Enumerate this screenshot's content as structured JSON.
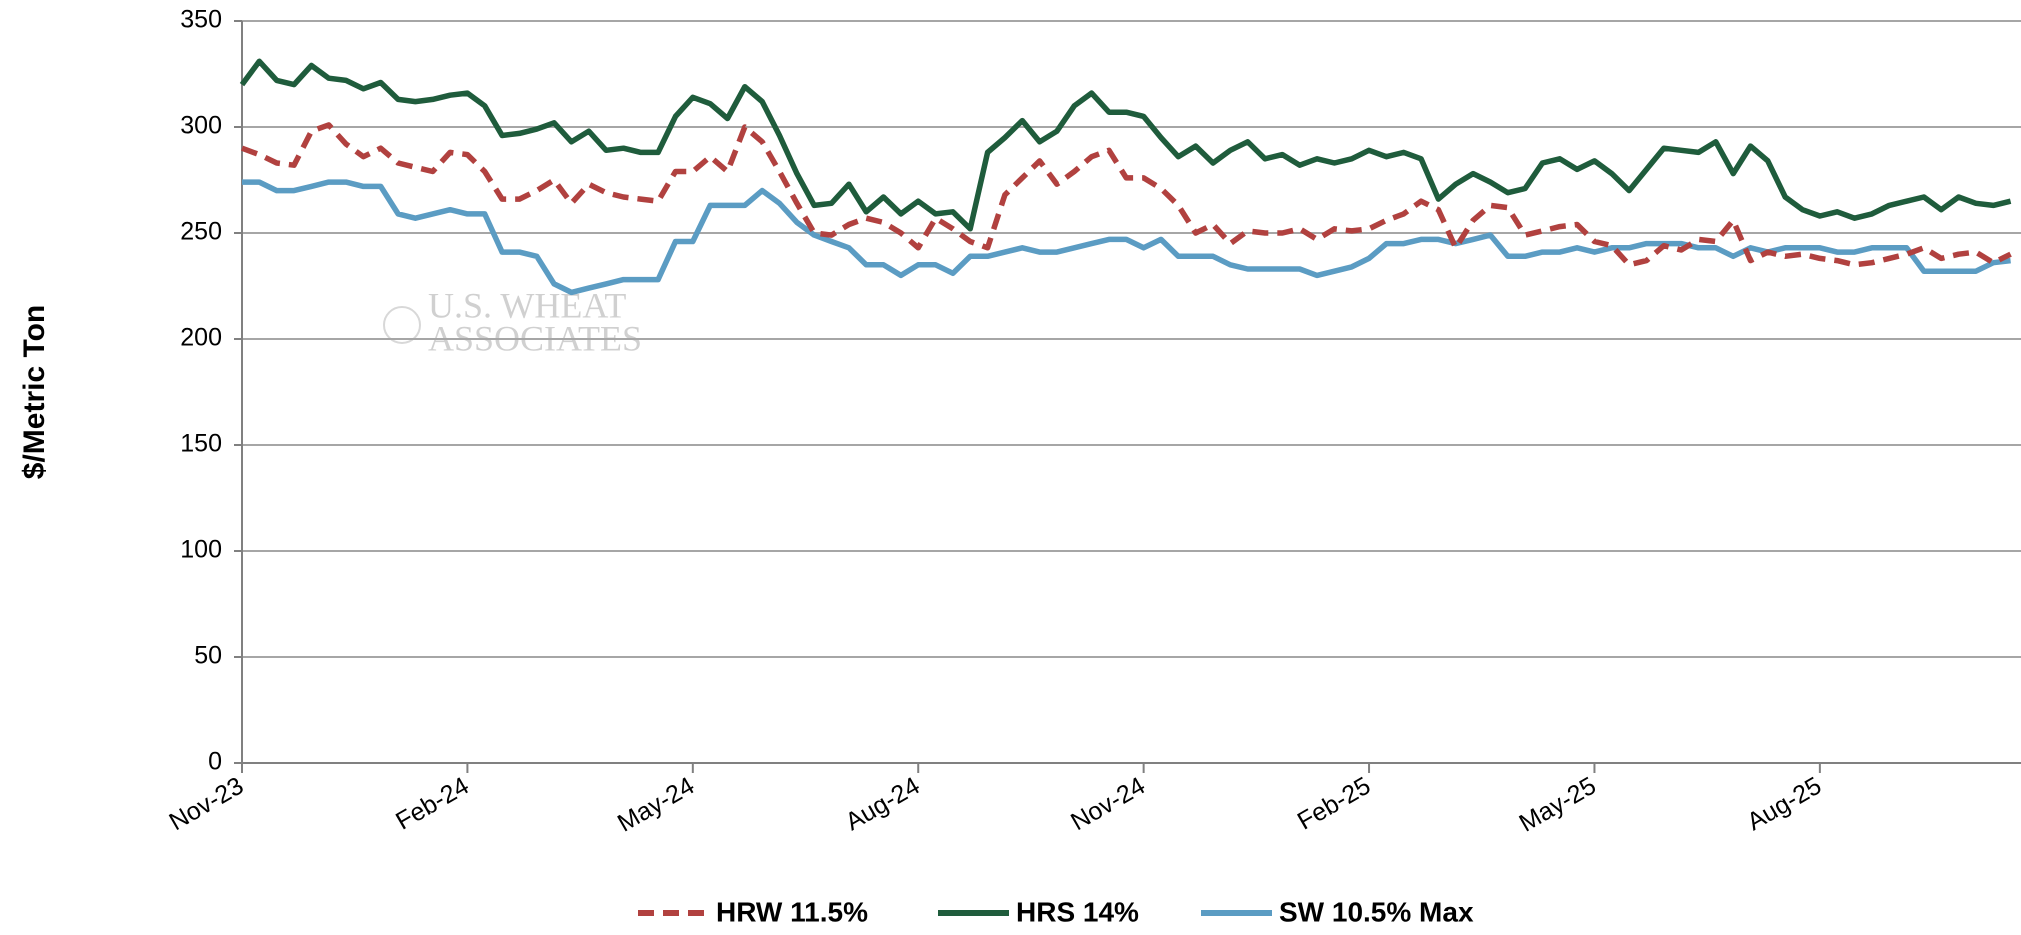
{
  "chart_data": {
    "type": "line",
    "y_label": "$/Metric Ton",
    "watermark": [
      "U.S. WHEAT",
      "ASSOCIATES"
    ],
    "categories": [
      "Nov-23",
      null,
      null,
      null,
      null,
      null,
      null,
      null,
      null,
      null,
      null,
      null,
      null,
      "Feb-24",
      null,
      null,
      null,
      null,
      null,
      null,
      null,
      null,
      null,
      null,
      null,
      null,
      "May-24",
      null,
      null,
      null,
      null,
      null,
      null,
      null,
      null,
      null,
      null,
      null,
      null,
      "Aug-24",
      null,
      null,
      null,
      null,
      null,
      null,
      null,
      null,
      null,
      null,
      null,
      null,
      "Nov-24",
      null,
      null,
      null,
      null,
      null,
      null,
      null,
      null,
      null,
      null,
      null,
      null,
      "Feb-25",
      null,
      null,
      null,
      null,
      null,
      null,
      null,
      null,
      null,
      null,
      null,
      null,
      "May-25",
      null,
      null,
      null,
      null,
      null,
      null,
      null,
      null,
      null,
      null,
      null,
      null,
      "Aug-25",
      null,
      null,
      null,
      null,
      null,
      null,
      null,
      null,
      null,
      null,
      null
    ],
    "series": [
      {
        "name": "HRW 11.5%",
        "color": "#b1413f",
        "style": "dashed",
        "values": [
          290,
          287,
          283,
          282,
          298,
          301,
          292,
          286,
          290,
          283,
          281,
          279,
          288,
          287,
          279,
          266,
          266,
          270,
          275,
          264,
          273,
          269,
          267,
          266,
          265,
          279,
          279,
          286,
          279,
          300,
          293,
          279,
          264,
          250,
          249,
          254,
          257,
          255,
          250,
          243,
          257,
          252,
          246,
          243,
          268,
          276,
          284,
          273,
          279,
          286,
          289,
          276,
          276,
          271,
          263,
          250,
          254,
          245,
          251,
          250,
          250,
          252,
          247,
          252,
          251,
          252,
          256,
          259,
          265,
          261,
          243,
          256,
          263,
          262,
          249,
          251,
          253,
          254,
          246,
          244,
          235,
          237,
          244,
          242,
          247,
          246,
          256,
          237,
          241,
          239,
          240,
          238,
          237,
          235,
          236,
          238,
          240,
          243,
          238,
          240,
          241,
          236,
          240
        ]
      },
      {
        "name": "HRS 14%",
        "color": "#1f5c3c",
        "style": "solid",
        "values": [
          320,
          331,
          322,
          320,
          329,
          323,
          322,
          318,
          321,
          313,
          312,
          313,
          315,
          316,
          310,
          296,
          297,
          299,
          302,
          293,
          298,
          289,
          290,
          288,
          288,
          305,
          314,
          311,
          304,
          319,
          312,
          296,
          278,
          263,
          264,
          273,
          260,
          267,
          259,
          265,
          259,
          260,
          252,
          288,
          295,
          303,
          293,
          298,
          310,
          316,
          307,
          307,
          305,
          295,
          286,
          291,
          283,
          289,
          293,
          285,
          287,
          282,
          285,
          283,
          285,
          289,
          286,
          288,
          285,
          266,
          273,
          278,
          274,
          269,
          271,
          283,
          285,
          280,
          284,
          278,
          270,
          280,
          290,
          289,
          288,
          293,
          278,
          291,
          284,
          267,
          261,
          258,
          260,
          257,
          259,
          263,
          265,
          267,
          261,
          267,
          264,
          263,
          265
        ]
      },
      {
        "name": "SW 10.5% Max",
        "color": "#5b9cc3",
        "style": "solid",
        "values": [
          274,
          274,
          270,
          270,
          272,
          274,
          274,
          272,
          272,
          259,
          257,
          259,
          261,
          259,
          259,
          241,
          241,
          239,
          226,
          222,
          224,
          226,
          228,
          228,
          228,
          246,
          246,
          263,
          263,
          263,
          270,
          264,
          255,
          249,
          246,
          243,
          235,
          235,
          230,
          235,
          235,
          231,
          239,
          239,
          241,
          243,
          241,
          241,
          243,
          245,
          247,
          247,
          243,
          247,
          239,
          239,
          239,
          235,
          233,
          233,
          233,
          233,
          230,
          232,
          234,
          238,
          245,
          245,
          247,
          247,
          245,
          247,
          249,
          239,
          239,
          241,
          241,
          243,
          241,
          243,
          243,
          245,
          245,
          245,
          243,
          243,
          239,
          243,
          241,
          243,
          243,
          243,
          241,
          241,
          243,
          243,
          243,
          232,
          232,
          232,
          232,
          236,
          237
        ]
      }
    ],
    "ylim": [
      0,
      350
    ],
    "yticks": [
      0,
      50,
      100,
      150,
      200,
      250,
      300,
      350
    ],
    "grid": true,
    "legend": "bottom"
  }
}
